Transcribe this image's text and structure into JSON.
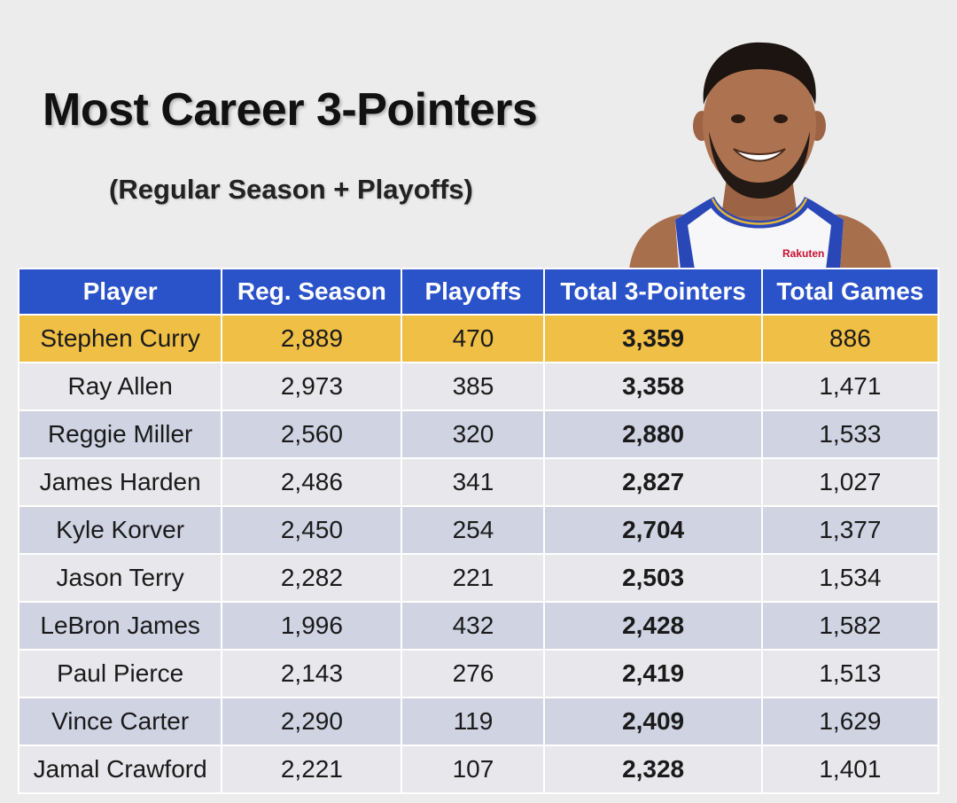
{
  "title": "Most Career 3-Pointers",
  "subtitle": "(Regular Season + Playoffs)",
  "photo": {
    "jersey_text": "Rakuten"
  },
  "colors": {
    "header_bg": "#2a52c9",
    "highlight_row": "#f0bf45",
    "row_light": "#e8e8ec",
    "row_dark": "#cfd3e2"
  },
  "chart_data": {
    "type": "table",
    "title": "Most Career 3-Pointers",
    "subtitle": "(Regular Season + Playoffs)",
    "columns": [
      "Player",
      "Reg. Season",
      "Playoffs",
      "Total 3-Pointers",
      "Total Games"
    ],
    "rows": [
      [
        "Stephen Curry",
        "2,889",
        "470",
        "3,359",
        "886"
      ],
      [
        "Ray Allen",
        "2,973",
        "385",
        "3,358",
        "1,471"
      ],
      [
        "Reggie Miller",
        "2,560",
        "320",
        "2,880",
        "1,533"
      ],
      [
        "James Harden",
        "2,486",
        "341",
        "2,827",
        "1,027"
      ],
      [
        "Kyle Korver",
        "2,450",
        "254",
        "2,704",
        "1,377"
      ],
      [
        "Jason Terry",
        "2,282",
        "221",
        "2,503",
        "1,534"
      ],
      [
        "LeBron James",
        "1,996",
        "432",
        "2,428",
        "1,582"
      ],
      [
        "Paul Pierce",
        "2,143",
        "276",
        "2,419",
        "1,513"
      ],
      [
        "Vince Carter",
        "2,290",
        "119",
        "2,409",
        "1,629"
      ],
      [
        "Jamal Crawford",
        "2,221",
        "107",
        "2,328",
        "1,401"
      ]
    ]
  }
}
